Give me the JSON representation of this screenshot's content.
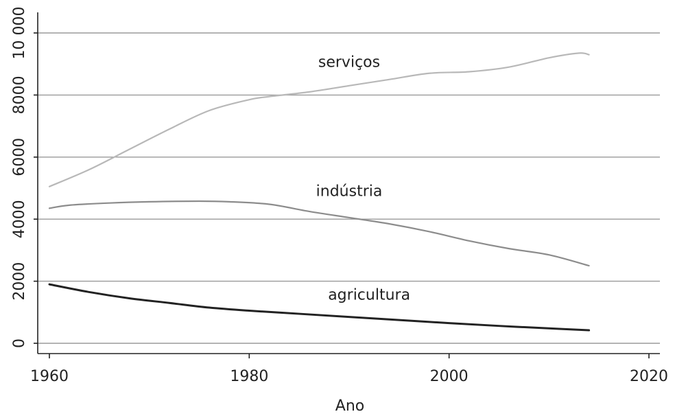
{
  "chart_data": {
    "type": "line",
    "title": "",
    "xlabel": "Ano",
    "ylabel": "",
    "xlim": [
      1959,
      2021
    ],
    "ylim": [
      -300,
      10600
    ],
    "x_ticks": [
      1960,
      1980,
      2000,
      2020
    ],
    "x_tick_labels": [
      "1960",
      "1980",
      "2000",
      "2020"
    ],
    "y_ticks": [
      0,
      2000,
      4000,
      6000,
      8000,
      10000
    ],
    "y_tick_labels": [
      "0",
      "2000",
      "4000",
      "6000",
      "8000",
      "10 000"
    ],
    "grid": "horizontal",
    "legend": "none (labels placed next to lines)",
    "series": [
      {
        "name": "serviços",
        "color": "#b8b8b8",
        "x": [
          1960,
          1964,
          1968,
          1972,
          1976,
          1980,
          1982,
          1986,
          1990,
          1994,
          1998,
          2002,
          2006,
          2010,
          2013,
          2014
        ],
        "y": [
          5050,
          5600,
          6250,
          6900,
          7500,
          7850,
          7950,
          8100,
          8300,
          8500,
          8700,
          8750,
          8900,
          9200,
          9350,
          9300
        ]
      },
      {
        "name": "indústria",
        "color": "#8c8c8c",
        "x": [
          1960,
          1962,
          1966,
          1970,
          1975,
          1978,
          1982,
          1986,
          1990,
          1994,
          1998,
          2002,
          2006,
          2010,
          2014
        ],
        "y": [
          4350,
          4450,
          4520,
          4560,
          4580,
          4560,
          4480,
          4250,
          4050,
          3850,
          3600,
          3300,
          3050,
          2850,
          2500
        ]
      },
      {
        "name": "agricultura",
        "color": "#222222",
        "x": [
          1960,
          1964,
          1968,
          1972,
          1976,
          1980,
          1985,
          1990,
          1995,
          2000,
          2005,
          2010,
          2014
        ],
        "y": [
          1900,
          1650,
          1450,
          1300,
          1150,
          1050,
          950,
          850,
          750,
          650,
          560,
          480,
          420
        ]
      }
    ],
    "annotations": [
      {
        "text": "serviços",
        "series": "serviços"
      },
      {
        "text": "indústria",
        "series": "indústria"
      },
      {
        "text": "agricultura",
        "series": "agricultura"
      }
    ]
  }
}
